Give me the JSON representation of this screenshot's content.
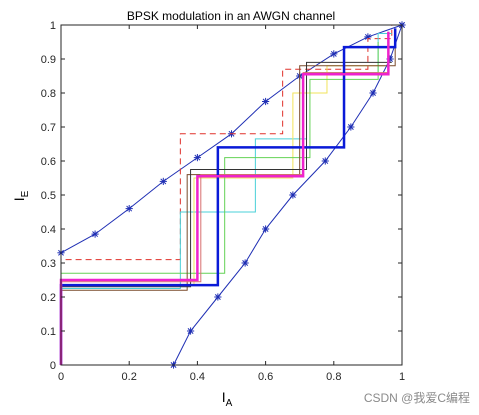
{
  "chart_data": {
    "type": "line",
    "title": "BPSK modulation in an AWGN channel",
    "xlabel": {
      "base": "I",
      "sub": "A"
    },
    "ylabel": {
      "base": "I",
      "sub": "E"
    },
    "xlim": [
      0,
      1
    ],
    "ylim": [
      0,
      1
    ],
    "xticks": [
      "0",
      "0.2",
      "0.4",
      "0.6",
      "0.8",
      "1"
    ],
    "xtick_values": [
      0,
      0.2,
      0.4,
      0.6,
      0.8,
      1
    ],
    "yticks": [
      "0",
      "0.1",
      "0.2",
      "0.3",
      "0.4",
      "0.5",
      "0.6",
      "0.7",
      "0.8",
      "0.9",
      "1"
    ],
    "ytick_values": [
      0,
      0.1,
      0.2,
      0.3,
      0.4,
      0.5,
      0.6,
      0.7,
      0.8,
      0.9,
      1
    ],
    "grid": false,
    "series": [
      {
        "color": "#1f2fb4",
        "dash": "solid",
        "width": 1,
        "marker": "asterisk",
        "points": [
          [
            0,
            0.33
          ],
          [
            0.1,
            0.385
          ],
          [
            0.2,
            0.46
          ],
          [
            0.3,
            0.54
          ],
          [
            0.4,
            0.61
          ],
          [
            0.5,
            0.68
          ],
          [
            0.6,
            0.775
          ],
          [
            0.7,
            0.85
          ],
          [
            0.8,
            0.915
          ],
          [
            0.9,
            0.965
          ],
          [
            1.0,
            1.0
          ]
        ]
      },
      {
        "color": "#1f2fb4",
        "dash": "solid",
        "width": 1,
        "marker": "asterisk",
        "points": [
          [
            0.33,
            0.0
          ],
          [
            0.38,
            0.1
          ],
          [
            0.46,
            0.2
          ],
          [
            0.54,
            0.3
          ],
          [
            0.6,
            0.4
          ],
          [
            0.68,
            0.5
          ],
          [
            0.775,
            0.6
          ],
          [
            0.85,
            0.7
          ],
          [
            0.915,
            0.8
          ],
          [
            0.965,
            0.9
          ],
          [
            1.0,
            1.0
          ]
        ]
      },
      {
        "color": "#e0302a",
        "dash": "dashed",
        "width": 1,
        "marker": "none",
        "points": [
          [
            0,
            0
          ],
          [
            0,
            0.31
          ],
          [
            0.35,
            0.31
          ],
          [
            0.35,
            0.68
          ],
          [
            0.65,
            0.68
          ],
          [
            0.65,
            0.87
          ],
          [
            0.9,
            0.87
          ],
          [
            0.9,
            0.96
          ],
          [
            0.97,
            0.96
          ],
          [
            0.97,
            1.0
          ]
        ]
      },
      {
        "color": "#4ad0d8",
        "dash": "solid",
        "width": 1,
        "marker": "none",
        "points": [
          [
            0,
            0
          ],
          [
            0,
            0.225
          ],
          [
            0.35,
            0.225
          ],
          [
            0.35,
            0.45
          ],
          [
            0.57,
            0.45
          ],
          [
            0.57,
            0.665
          ],
          [
            0.72,
            0.665
          ],
          [
            0.72,
            0.86
          ],
          [
            0.93,
            0.86
          ],
          [
            0.93,
            0.975
          ],
          [
            0.97,
            0.975
          ]
        ]
      },
      {
        "color": "#f2e35a",
        "dash": "solid",
        "width": 1,
        "marker": "none",
        "points": [
          [
            0,
            0
          ],
          [
            0,
            0.235
          ],
          [
            0.39,
            0.235
          ],
          [
            0.39,
            0.55
          ],
          [
            0.68,
            0.55
          ],
          [
            0.68,
            0.8
          ],
          [
            0.78,
            0.8
          ],
          [
            0.78,
            0.88
          ],
          [
            0.95,
            0.88
          ]
        ]
      },
      {
        "color": "#64d256",
        "dash": "solid",
        "width": 1,
        "marker": "none",
        "points": [
          [
            0,
            0
          ],
          [
            0,
            0.27
          ],
          [
            0.48,
            0.27
          ],
          [
            0.48,
            0.61
          ],
          [
            0.73,
            0.61
          ],
          [
            0.73,
            0.84
          ],
          [
            0.93,
            0.84
          ],
          [
            0.93,
            0.95
          ]
        ]
      },
      {
        "color": "#7a4a2a",
        "dash": "solid",
        "width": 1,
        "marker": "none",
        "points": [
          [
            0,
            0
          ],
          [
            0,
            0.22
          ],
          [
            0.37,
            0.22
          ],
          [
            0.37,
            0.56
          ],
          [
            0.7,
            0.56
          ],
          [
            0.7,
            0.88
          ],
          [
            0.98,
            0.88
          ],
          [
            0.98,
            0.97
          ]
        ]
      },
      {
        "color": "#333333",
        "dash": "solid",
        "width": 1,
        "marker": "none",
        "points": [
          [
            0,
            0
          ],
          [
            0,
            0.23
          ],
          [
            0.38,
            0.23
          ],
          [
            0.38,
            0.575
          ],
          [
            0.72,
            0.575
          ],
          [
            0.72,
            0.89
          ],
          [
            0.97,
            0.89
          ]
        ]
      },
      {
        "color": "#d96f6f",
        "dash": "solid",
        "width": 1,
        "marker": "none",
        "points": [
          [
            0,
            0
          ],
          [
            0,
            0.245
          ],
          [
            0.41,
            0.245
          ],
          [
            0.41,
            0.56
          ],
          [
            0.71,
            0.56
          ],
          [
            0.71,
            0.86
          ],
          [
            0.96,
            0.86
          ],
          [
            0.96,
            0.98
          ]
        ]
      },
      {
        "color": "#0a1ad8",
        "dash": "solid",
        "width": 2.5,
        "marker": "none",
        "points": [
          [
            0,
            0
          ],
          [
            0,
            0.235
          ],
          [
            0.46,
            0.235
          ],
          [
            0.46,
            0.64
          ],
          [
            0.83,
            0.64
          ],
          [
            0.83,
            0.935
          ],
          [
            0.98,
            0.935
          ],
          [
            0.98,
            0.99
          ]
        ]
      },
      {
        "color": "#ee22cc",
        "dash": "solid",
        "width": 2.5,
        "marker": "none",
        "points": [
          [
            0,
            0
          ],
          [
            0,
            0.25
          ],
          [
            0.4,
            0.25
          ],
          [
            0.4,
            0.555
          ],
          [
            0.71,
            0.555
          ],
          [
            0.71,
            0.855
          ],
          [
            0.96,
            0.855
          ],
          [
            0.96,
            0.98
          ]
        ]
      }
    ]
  },
  "watermark": "CSDN @我爱C编程"
}
